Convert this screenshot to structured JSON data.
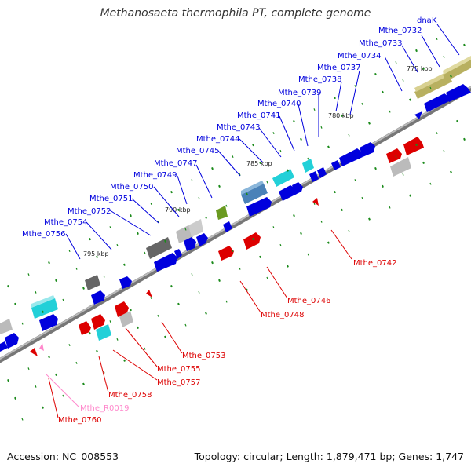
{
  "title": "Methanosaeta thermophila PT, complete genome",
  "footer": {
    "accession": "Accession: NC_008553",
    "summary": "Topology: circular; Length: 1,879,471 bp; Genes: 1,747"
  },
  "colors": {
    "forward_cds": "#0000dd",
    "reverse_cds": "#dd0000",
    "rna": "#ff88cc",
    "backbone": "#888888",
    "tick": "#1a8a1a",
    "cog_cyan": "#22d0d8",
    "cog_gray": "#bbbbbb",
    "cog_darkgray": "#666666",
    "cog_steelblue": "#4a82b8",
    "cog_olive": "#b8b060",
    "cog_green": "#6a9a20"
  },
  "kbp_markers": [
    "775 kbp",
    "780 kbp",
    "785 kbp",
    "790 kbp",
    "795 kbp"
  ],
  "forward_labels": [
    "dnaK",
    "Mthe_0732",
    "Mthe_0733",
    "Mthe_0734",
    "Mthe_0737",
    "Mthe_0738",
    "Mthe_0739",
    "Mthe_0740",
    "Mthe_0741",
    "Mthe_0743",
    "Mthe_0744",
    "Mthe_0745",
    "Mthe_0747",
    "Mthe_0749",
    "Mthe_0750",
    "Mthe_0751",
    "Mthe_0752",
    "Mthe_0754",
    "Mthe_0756"
  ],
  "reverse_labels": [
    "Mthe_0742",
    "Mthe_0746",
    "Mthe_0748",
    "Mthe_0753",
    "Mthe_0755",
    "Mthe_0757",
    "Mthe_0758",
    "Mthe_0760"
  ],
  "rna_labels": [
    "Mthe_R0019"
  ]
}
